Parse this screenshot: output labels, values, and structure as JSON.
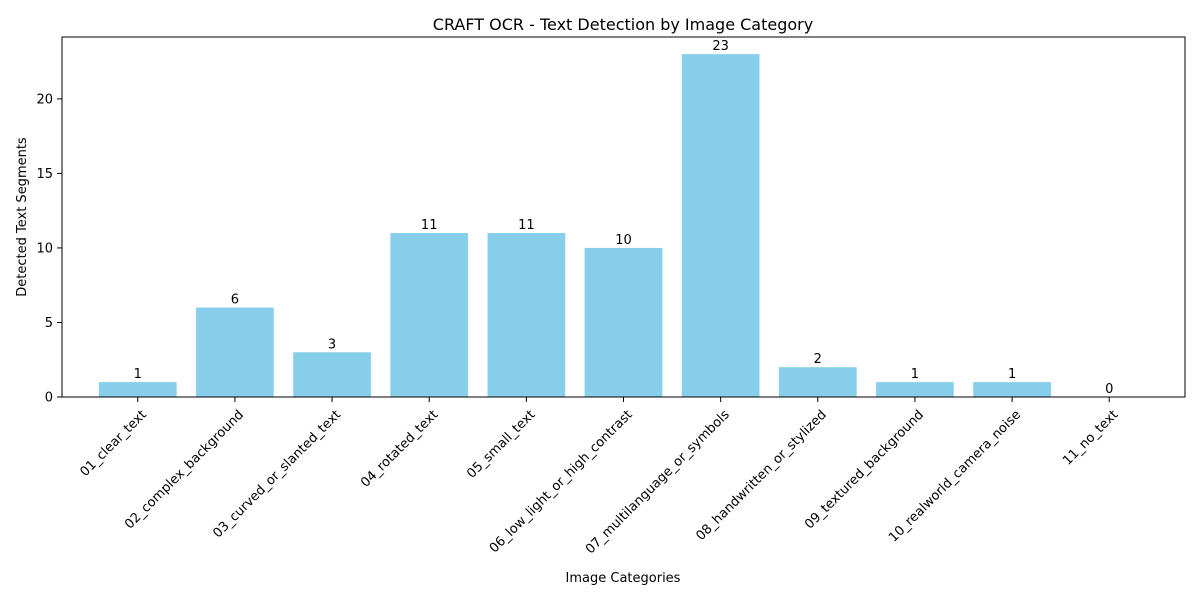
{
  "chart_data": {
    "type": "bar",
    "title": "CRAFT OCR - Text Detection by Image Category",
    "xlabel": "Image Categories",
    "ylabel": "Detected Text Segments",
    "categories": [
      "01_clear_text",
      "02_complex_background",
      "03_curved_or_slanted_text",
      "04_rotated_text",
      "05_small_text",
      "06_low_light_or_high_contrast",
      "07_multilanguage_or_symbols",
      "08_handwritten_or_stylized",
      "09_textured_background",
      "10_realworld_camera_noise",
      "11_no_text"
    ],
    "values": [
      1,
      6,
      3,
      11,
      11,
      10,
      23,
      2,
      1,
      1,
      0
    ],
    "ylim": [
      0,
      24.15
    ],
    "yticks": [
      0,
      5,
      10,
      15,
      20
    ],
    "grid": false,
    "bar_color": "#87ceeb"
  }
}
